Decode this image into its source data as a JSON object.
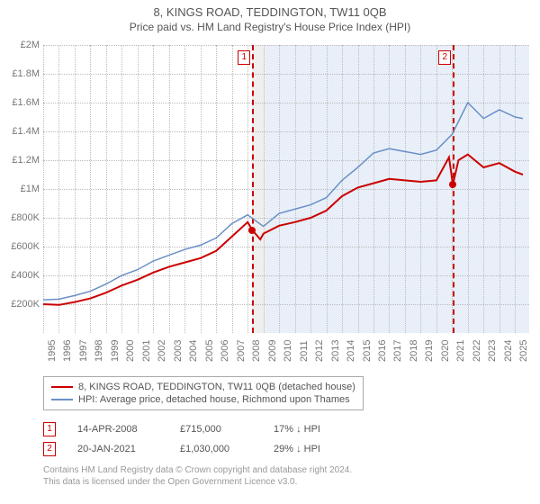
{
  "header": {
    "title": "8, KINGS ROAD, TEDDINGTON, TW11 0QB",
    "subtitle": "Price paid vs. HM Land Registry's House Price Index (HPI)"
  },
  "chart": {
    "type": "line",
    "x_range": [
      1995,
      2025.9
    ],
    "y_range": [
      0,
      2000000
    ],
    "y_ticks": [
      {
        "v": 200000,
        "label": "£200K"
      },
      {
        "v": 400000,
        "label": "£400K"
      },
      {
        "v": 600000,
        "label": "£600K"
      },
      {
        "v": 800000,
        "label": "£800K"
      },
      {
        "v": 1000000,
        "label": "£1M"
      },
      {
        "v": 1200000,
        "label": "£1.2M"
      },
      {
        "v": 1400000,
        "label": "£1.4M"
      },
      {
        "v": 1600000,
        "label": "£1.6M"
      },
      {
        "v": 1800000,
        "label": "£1.8M"
      },
      {
        "v": 2000000,
        "label": "£2M"
      }
    ],
    "x_ticks": [
      1995,
      1996,
      1997,
      1998,
      1999,
      2000,
      2001,
      2002,
      2003,
      2004,
      2005,
      2006,
      2007,
      2008,
      2009,
      2010,
      2011,
      2012,
      2013,
      2014,
      2015,
      2016,
      2017,
      2018,
      2019,
      2020,
      2021,
      2022,
      2023,
      2024,
      2025
    ],
    "bg_light_from": 2008.29,
    "bg_blue_from": 2009.2,
    "bg_blue_to": 2025.9,
    "markers": [
      {
        "x": 2008.29,
        "label": "1"
      },
      {
        "x": 2021.05,
        "label": "2"
      }
    ],
    "grid_color": "#bbbbbb",
    "series": [
      {
        "name": "property",
        "color": "#cc0000",
        "width": 2,
        "data": [
          [
            1995,
            200000
          ],
          [
            1996,
            195000
          ],
          [
            1997,
            215000
          ],
          [
            1998,
            240000
          ],
          [
            1999,
            280000
          ],
          [
            2000,
            330000
          ],
          [
            2001,
            370000
          ],
          [
            2002,
            420000
          ],
          [
            2003,
            460000
          ],
          [
            2004,
            490000
          ],
          [
            2005,
            520000
          ],
          [
            2006,
            570000
          ],
          [
            2007,
            670000
          ],
          [
            2008,
            770000
          ],
          [
            2008.29,
            715000
          ],
          [
            2008.8,
            650000
          ],
          [
            2009,
            690000
          ],
          [
            2010,
            745000
          ],
          [
            2011,
            770000
          ],
          [
            2012,
            800000
          ],
          [
            2013,
            850000
          ],
          [
            2014,
            950000
          ],
          [
            2015,
            1010000
          ],
          [
            2016,
            1040000
          ],
          [
            2017,
            1070000
          ],
          [
            2018,
            1060000
          ],
          [
            2019,
            1050000
          ],
          [
            2020,
            1060000
          ],
          [
            2020.8,
            1220000
          ],
          [
            2021.05,
            1030000
          ],
          [
            2021.4,
            1200000
          ],
          [
            2022,
            1240000
          ],
          [
            2023,
            1150000
          ],
          [
            2024,
            1180000
          ],
          [
            2025,
            1120000
          ],
          [
            2025.5,
            1100000
          ]
        ]
      },
      {
        "name": "hpi",
        "color": "#6a8fc7",
        "width": 1.5,
        "data": [
          [
            1995,
            230000
          ],
          [
            1996,
            235000
          ],
          [
            1997,
            260000
          ],
          [
            1998,
            290000
          ],
          [
            1999,
            340000
          ],
          [
            2000,
            400000
          ],
          [
            2001,
            440000
          ],
          [
            2002,
            500000
          ],
          [
            2003,
            540000
          ],
          [
            2004,
            580000
          ],
          [
            2005,
            610000
          ],
          [
            2006,
            660000
          ],
          [
            2007,
            760000
          ],
          [
            2008,
            820000
          ],
          [
            2009,
            740000
          ],
          [
            2010,
            830000
          ],
          [
            2011,
            860000
          ],
          [
            2012,
            890000
          ],
          [
            2013,
            940000
          ],
          [
            2014,
            1060000
          ],
          [
            2015,
            1150000
          ],
          [
            2016,
            1250000
          ],
          [
            2017,
            1280000
          ],
          [
            2018,
            1260000
          ],
          [
            2019,
            1240000
          ],
          [
            2020,
            1270000
          ],
          [
            2021,
            1380000
          ],
          [
            2022,
            1600000
          ],
          [
            2023,
            1490000
          ],
          [
            2024,
            1550000
          ],
          [
            2025,
            1500000
          ],
          [
            2025.5,
            1490000
          ]
        ]
      }
    ],
    "sale_points": [
      {
        "x": 2008.29,
        "y": 715000
      },
      {
        "x": 2021.05,
        "y": 1030000
      }
    ]
  },
  "legend": {
    "rows": [
      {
        "color": "#cc0000",
        "label": "8, KINGS ROAD, TEDDINGTON, TW11 0QB (detached house)"
      },
      {
        "color": "#6a8fc7",
        "label": "HPI: Average price, detached house, Richmond upon Thames"
      }
    ]
  },
  "sales": [
    {
      "marker": "1",
      "date": "14-APR-2008",
      "price": "£715,000",
      "hpi": "17% ↓ HPI"
    },
    {
      "marker": "2",
      "date": "20-JAN-2021",
      "price": "£1,030,000",
      "hpi": "29% ↓ HPI"
    }
  ],
  "attribution": {
    "line1": "Contains HM Land Registry data © Crown copyright and database right 2024.",
    "line2": "This data is licensed under the Open Government Licence v3.0."
  }
}
